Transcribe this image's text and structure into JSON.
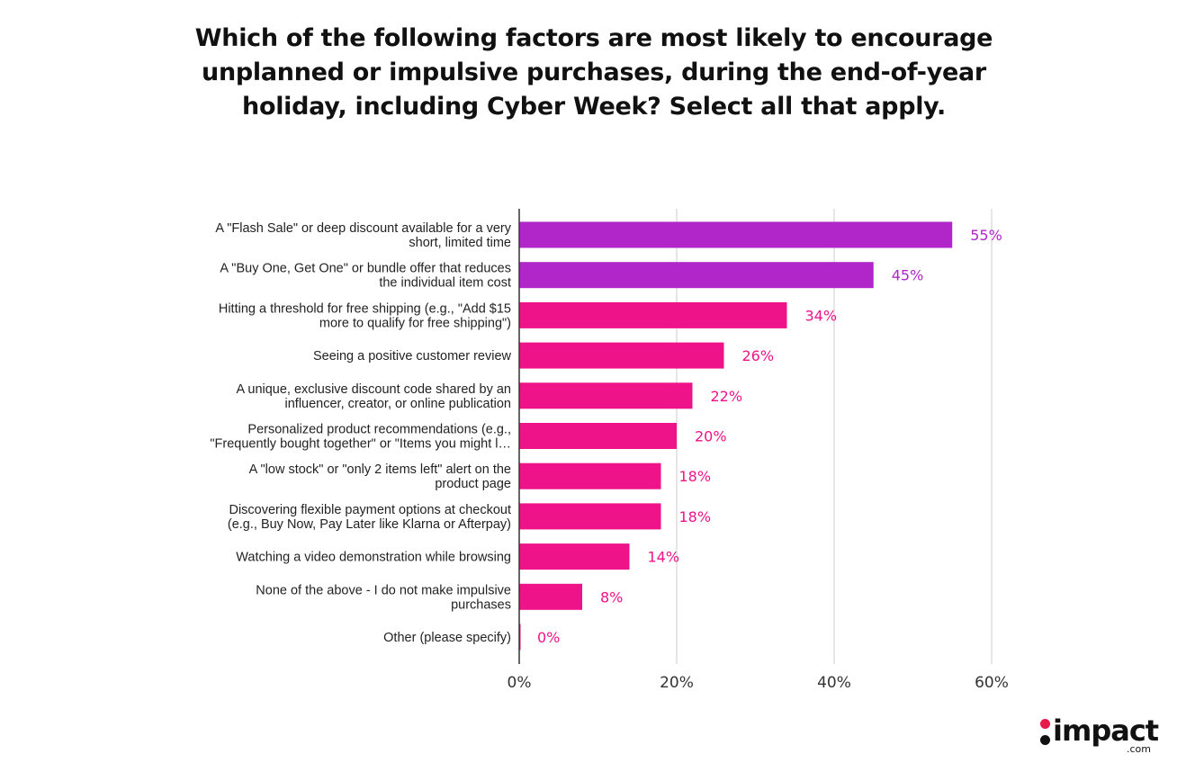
{
  "chart_data": {
    "type": "bar",
    "orientation": "horizontal",
    "title": "Which of the following factors are most likely to encourage unplanned or impulsive purchases, during the end-of-year holiday, including Cyber Week? Select all that apply.",
    "categories": [
      [
        "A \"Flash Sale\" or deep discount available for a very",
        "short, limited time"
      ],
      [
        "A \"Buy One, Get One\" or bundle offer that reduces",
        "the individual item cost"
      ],
      [
        "Hitting a threshold for free shipping (e.g., \"Add $15",
        "more to qualify for free shipping\")"
      ],
      [
        "Seeing a positive customer review"
      ],
      [
        "A unique, exclusive discount code shared by an",
        "influencer, creator, or online publication"
      ],
      [
        "Personalized product recommendations (e.g.,",
        "\"Frequently bought together\" or \"Items you might l…"
      ],
      [
        "A \"low stock\" or \"only 2 items left\" alert on the",
        "product page"
      ],
      [
        "Discovering flexible payment options at checkout",
        "(e.g., Buy Now, Pay Later like Klarna or Afterpay)"
      ],
      [
        "Watching a video demonstration while browsing"
      ],
      [
        "None of the above - I do not make impulsive",
        "purchases"
      ],
      [
        "Other (please specify)"
      ]
    ],
    "values": [
      55,
      45,
      34,
      26,
      22,
      20,
      18,
      18,
      14,
      8,
      0
    ],
    "value_labels": [
      "55%",
      "45%",
      "34%",
      "26%",
      "22%",
      "20%",
      "18%",
      "18%",
      "14%",
      "8%",
      "0%"
    ],
    "bar_colors": [
      "#b026c9",
      "#b026c9",
      "#ee1389",
      "#ee1389",
      "#ee1389",
      "#ee1389",
      "#ee1389",
      "#ee1389",
      "#ee1389",
      "#ee1389",
      "#ee1389"
    ],
    "label_colors": [
      "#b026c9",
      "#b026c9",
      "#ee1389",
      "#ee1389",
      "#ee1389",
      "#ee1389",
      "#ee1389",
      "#ee1389",
      "#ee1389",
      "#ee1389",
      "#ee1389"
    ],
    "xlim": [
      0,
      60
    ],
    "xticks": [
      0,
      20,
      40,
      60
    ],
    "xtick_labels": [
      "0%",
      "20%",
      "40%",
      "60%"
    ],
    "xlabel": "",
    "ylabel": "",
    "grid": "vertical"
  },
  "logo": {
    "word": "impact",
    "tld": ".com"
  }
}
